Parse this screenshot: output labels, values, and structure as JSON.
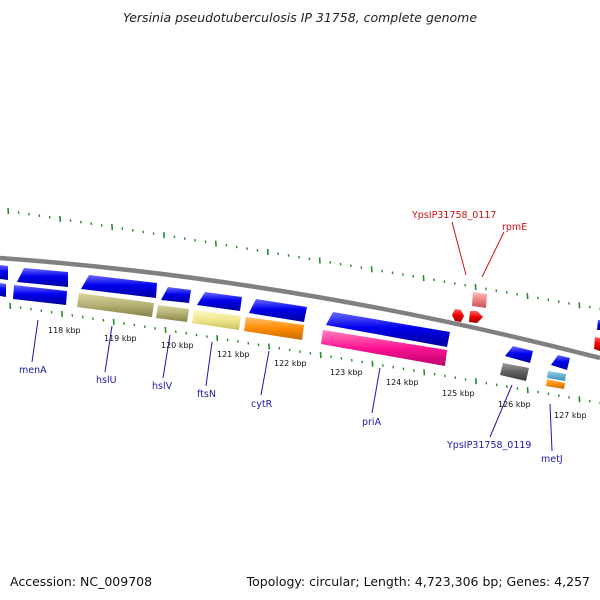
{
  "title": "Yersinia pseudotuberculosis IP 31758, complete genome",
  "footer": {
    "accession": "Accession: NC_009708",
    "stats": "Topology: circular; Length: 4,723,306 bp; Genes: 4,257"
  },
  "scale": {
    "labels": [
      "118 kbp",
      "119 kbp",
      "120 kbp",
      "121 kbp",
      "122 kbp",
      "123 kbp",
      "124 kbp",
      "125 kbp",
      "126 kbp",
      "127 kbp"
    ]
  },
  "genes": {
    "menA": "menA",
    "hslU": "hslU",
    "hslV": "hslV",
    "ftsN": "ftsN",
    "cytR": "cytR",
    "priA": "priA",
    "ypsip0119": "YpsIP31758_0119",
    "metJ": "metJ",
    "ypsip0117": "YpsIP31758_0117",
    "rpmE": "rpmE"
  },
  "colors": {
    "backbone": "#808080",
    "cds": "#0000ee",
    "tick": "#2a8a2a",
    "label": "#1a1aa6",
    "rna_label": "#cc1111",
    "rna": "#ee0000",
    "olive": "#b5b173",
    "cream": "#f0e68c",
    "orange": "#ff8c00",
    "magenta": "#ff1493",
    "gray": "#606060",
    "pink": "#f08080"
  }
}
